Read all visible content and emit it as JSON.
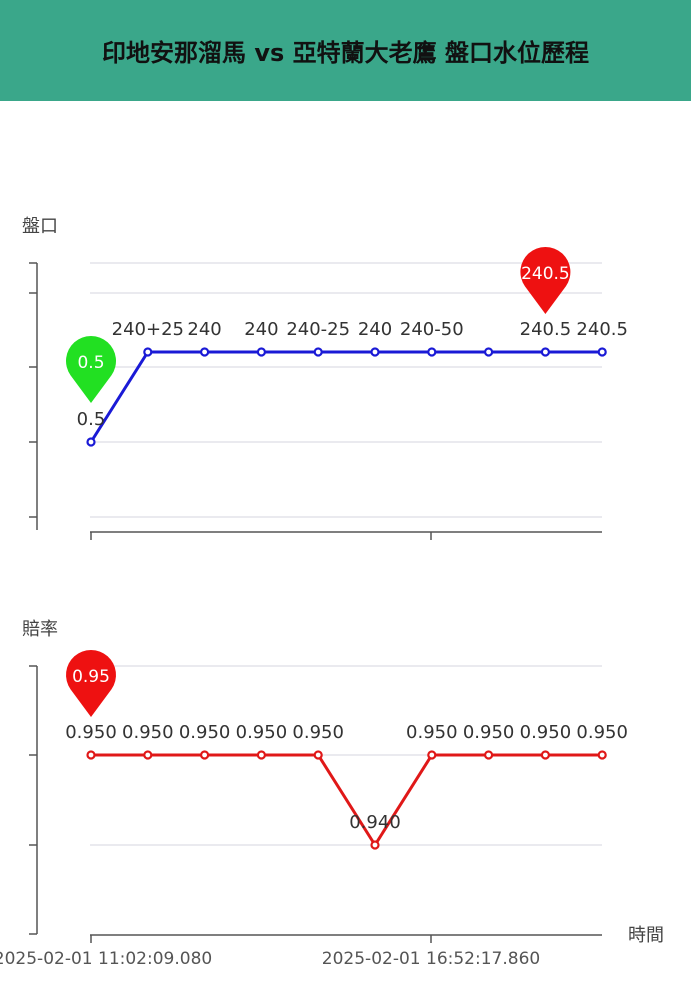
{
  "header": {
    "title": "印地安那溜馬 vs 亞特蘭大老鷹 盤口水位歷程"
  },
  "colors": {
    "header_bg": "#3aa78a",
    "handicap_line": "#1a1ad6",
    "odds_line": "#e01818",
    "start_pin": "#22e022",
    "end_pin": "#ee1111",
    "grid": "#e3e3ea",
    "axis": "#555555"
  },
  "chart_data": [
    {
      "type": "line",
      "ylabel": "盤口",
      "series": [
        {
          "values": [
            0.5,
            240.5,
            240.5,
            240.5,
            240.5,
            240.5,
            240.5,
            240.5,
            240.5,
            240.5
          ]
        }
      ],
      "data_labels": [
        "0.5",
        "240+25",
        "240",
        "240",
        "240-25",
        "240",
        "240-50",
        "",
        "240.5",
        "240.5"
      ],
      "markers": [
        {
          "label": "0.5",
          "index": 0,
          "color": "#22e022"
        },
        {
          "label": "240.5",
          "index": 8,
          "color": "#ee1111"
        }
      ],
      "legend": "none",
      "grid": true
    },
    {
      "type": "line",
      "ylabel": "賠率",
      "xlabel": "時間",
      "series": [
        {
          "values": [
            0.95,
            0.95,
            0.95,
            0.95,
            0.95,
            0.94,
            0.95,
            0.95,
            0.95,
            0.95
          ]
        }
      ],
      "data_labels": [
        "0.950",
        "0.950",
        "0.950",
        "0.950",
        "0.950",
        "0.940",
        "0.950",
        "0.950",
        "0.950",
        "0.950"
      ],
      "markers": [
        {
          "label": "0.95",
          "index": 0,
          "color": "#ee1111"
        }
      ],
      "x_tick_labels": [
        "2025-02-01 11:02:09.080",
        "2025-02-01 16:52:17.860"
      ],
      "x_tick_indices": [
        0,
        6
      ],
      "legend": "none",
      "grid": true
    }
  ]
}
